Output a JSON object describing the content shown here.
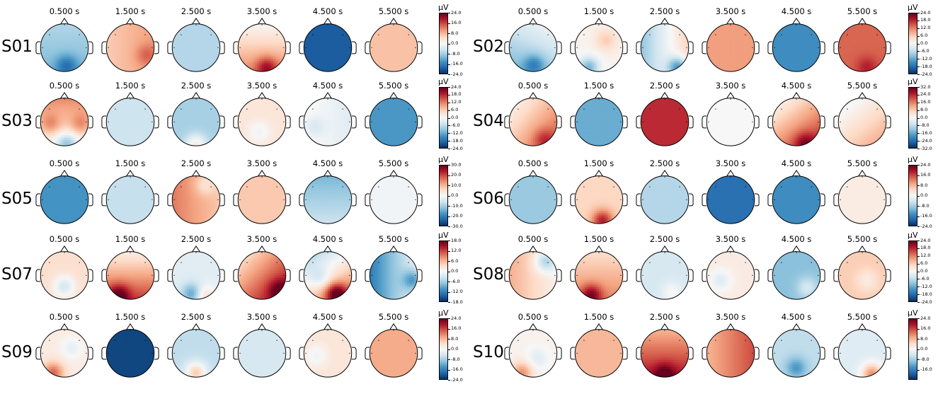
{
  "colors": {
    "colormap": [
      "#053061",
      "#2166ac",
      "#4393c3",
      "#92c5de",
      "#d1e5f0",
      "#f7f7f7",
      "#fddbc7",
      "#f4a582",
      "#d6604d",
      "#b2182b",
      "#67001f"
    ],
    "head_outline": "#000000",
    "contour": "#555555"
  },
  "chart_data": {
    "type": "heatmap",
    "title": "",
    "unit": "µV",
    "times": [
      "0.500 s",
      "1.500 s",
      "2.500 s",
      "3.500 s",
      "4.500 s",
      "5.500 s"
    ],
    "subjects": [
      {
        "label": "S01",
        "vmax": 24,
        "ticks": [
          "24.0",
          "16.0",
          "8.0",
          "0.0",
          "-8.0",
          "-16.0",
          "-24.0"
        ],
        "maps": [
          {
            "mean": -9,
            "gx": 0,
            "gy": -2,
            "hot": [
              [
                0.1,
                0.75,
                -8
              ]
            ]
          },
          {
            "mean": 8,
            "gx": 2,
            "gy": 0,
            "hot": [
              [
                0.65,
                0.3,
                5
              ]
            ]
          },
          {
            "mean": -7,
            "gx": 0,
            "gy": 0,
            "hot": []
          },
          {
            "mean": 6,
            "gx": 0,
            "gy": 6,
            "hot": [
              [
                0.2,
                0.8,
                10
              ]
            ]
          },
          {
            "mean": -20,
            "gx": 0,
            "gy": 0,
            "hot": []
          },
          {
            "mean": 7,
            "gx": 0,
            "gy": 0,
            "hot": []
          }
        ]
      },
      {
        "label": "S02",
        "vmax": 24,
        "ticks": [
          "24.0",
          "18.0",
          "12.0",
          "6.0",
          "0.0",
          "-6.0",
          "-12.0",
          "-18.0",
          "-24.0"
        ],
        "maps": [
          {
            "mean": -6,
            "gx": 2,
            "gy": -4,
            "hot": [
              [
                0.05,
                0.7,
                -8
              ]
            ]
          },
          {
            "mean": 1,
            "gx": 0,
            "gy": 0,
            "hot": [
              [
                -0.4,
                0.8,
                -12
              ],
              [
                0.3,
                -0.3,
                5
              ]
            ]
          },
          {
            "mean": -2,
            "gx": 8,
            "gy": 0,
            "hot": [
              [
                0.55,
                0.8,
                -16
              ]
            ]
          },
          {
            "mean": 10,
            "gx": 0,
            "gy": 0,
            "hot": []
          },
          {
            "mean": -15,
            "gx": 0,
            "gy": 0,
            "hot": []
          },
          {
            "mean": 14,
            "gx": 0,
            "gy": 0,
            "hot": [
              [
                0.2,
                0.8,
                5
              ]
            ]
          }
        ]
      },
      {
        "label": "S03",
        "vmax": 24,
        "ticks": [
          "24.0",
          "18.0",
          "12.0",
          "6.0",
          "0.0",
          "-6.0",
          "-12.0",
          "-18.0",
          "-24.0"
        ],
        "maps": [
          {
            "mean": 6,
            "gx": 0,
            "gy": -6,
            "hot": [
              [
                -0.55,
                0.1,
                6
              ],
              [
                0.65,
                0.1,
                6
              ],
              [
                0.1,
                0.85,
                -10
              ]
            ]
          },
          {
            "mean": -5,
            "gx": 0,
            "gy": 0,
            "hot": []
          },
          {
            "mean": -8,
            "gx": 0,
            "gy": 0,
            "hot": [
              [
                0.0,
                0.95,
                10
              ]
            ]
          },
          {
            "mean": 3,
            "gx": 0,
            "gy": 0,
            "hot": [
              [
                -0.1,
                0.4,
                -4
              ]
            ]
          },
          {
            "mean": -1,
            "gx": -2,
            "gy": 0,
            "hot": [
              [
                -0.55,
                0.2,
                -4
              ]
            ]
          },
          {
            "mean": -14,
            "gx": 0,
            "gy": 0,
            "hot": []
          }
        ]
      },
      {
        "label": "S04",
        "vmax": 32,
        "ticks": [
          "32.0",
          "24.0",
          "16.0",
          "8.0",
          "0.0",
          "-8.0",
          "-16.0",
          "-24.0",
          "-32.0"
        ],
        "maps": [
          {
            "mean": 10,
            "gx": 6,
            "gy": 5,
            "hot": [
              [
                0.45,
                0.7,
                8
              ]
            ]
          },
          {
            "mean": -16,
            "gx": 0,
            "gy": 0,
            "hot": []
          },
          {
            "mean": 24,
            "gx": 0,
            "gy": 0,
            "hot": []
          },
          {
            "mean": 0,
            "gx": 0,
            "gy": 0,
            "hot": []
          },
          {
            "mean": 12,
            "gx": 6,
            "gy": 8,
            "hot": [
              [
                0.35,
                0.85,
                10
              ]
            ]
          },
          {
            "mean": 5,
            "gx": 4,
            "gy": 5,
            "hot": []
          }
        ]
      },
      {
        "label": "S05",
        "vmax": 30,
        "ticks": [
          "30.0",
          "20.0",
          "10.0",
          "0.0",
          "-10.0",
          "-20.0",
          "-30.0"
        ],
        "maps": [
          {
            "mean": -18,
            "gx": 0,
            "gy": 0,
            "hot": []
          },
          {
            "mean": -7,
            "gx": 0,
            "gy": 0,
            "hot": []
          },
          {
            "mean": 12,
            "gx": -4,
            "gy": 0,
            "hot": [
              [
                0.35,
                -0.6,
                -6
              ]
            ]
          },
          {
            "mean": 8,
            "gx": 0,
            "gy": 0,
            "hot": []
          },
          {
            "mean": -10,
            "gx": 0,
            "gy": 4,
            "hot": []
          },
          {
            "mean": -1,
            "gx": 0,
            "gy": 0,
            "hot": []
          }
        ]
      },
      {
        "label": "S06",
        "vmax": 24,
        "ticks": [
          "24.0",
          "16.0",
          "8.0",
          "0.0",
          "-8.0",
          "-16.0",
          "-24.0"
        ],
        "maps": [
          {
            "mean": -9,
            "gx": 0,
            "gy": 0,
            "hot": []
          },
          {
            "mean": 5,
            "gx": 0,
            "gy": 0,
            "hot": [
              [
                0.15,
                0.85,
                14
              ]
            ]
          },
          {
            "mean": -7,
            "gx": 0,
            "gy": 0,
            "hot": []
          },
          {
            "mean": -18,
            "gx": 0,
            "gy": 0,
            "hot": []
          },
          {
            "mean": -15,
            "gx": 0,
            "gy": 0,
            "hot": []
          },
          {
            "mean": 2,
            "gx": 0,
            "gy": 0,
            "hot": []
          }
        ]
      },
      {
        "label": "S07",
        "vmax": 18,
        "ticks": [
          "18.0",
          "12.0",
          "6.0",
          "0.0",
          "-6.0",
          "-12.0",
          "-18.0"
        ],
        "maps": [
          {
            "mean": 3,
            "gx": 0,
            "gy": 0,
            "hot": [
              [
                0.0,
                0.45,
                -6
              ]
            ]
          },
          {
            "mean": 7,
            "gx": 0,
            "gy": 6,
            "hot": [
              [
                -0.45,
                0.8,
                8
              ]
            ]
          },
          {
            "mean": -2,
            "gx": 0,
            "gy": 0,
            "hot": [
              [
                -0.15,
                0.75,
                -8
              ],
              [
                0.35,
                0.85,
                6
              ]
            ]
          },
          {
            "mean": 9,
            "gx": 4,
            "gy": 4,
            "hot": [
              [
                0.7,
                0.6,
                6
              ]
            ]
          },
          {
            "mean": 2,
            "gx": 4,
            "gy": 6,
            "hot": [
              [
                0.35,
                0.75,
                12
              ],
              [
                -0.3,
                0.1,
                -4
              ]
            ]
          },
          {
            "mean": -7,
            "gx": 6,
            "gy": 0,
            "hot": [
              [
                0.8,
                0.2,
                -8
              ]
            ]
          }
        ]
      },
      {
        "label": "S08",
        "vmax": 24,
        "ticks": [
          "24.0",
          "18.0",
          "12.0",
          "6.0",
          "0.0",
          "-6.0",
          "-12.0",
          "-18.0",
          "-24.0"
        ],
        "maps": [
          {
            "mean": 5,
            "gx": -4,
            "gy": 0,
            "hot": [
              [
                0.5,
                -0.55,
                -10
              ]
            ]
          },
          {
            "mean": 8,
            "gx": 0,
            "gy": 4,
            "hot": [
              [
                -0.3,
                0.8,
                12
              ]
            ]
          },
          {
            "mean": -4,
            "gx": 0,
            "gy": 0,
            "hot": [
              [
                0.3,
                0.7,
                4
              ]
            ]
          },
          {
            "mean": 2,
            "gx": 0,
            "gy": 0,
            "hot": [
              [
                -0.4,
                0.2,
                -5
              ]
            ]
          },
          {
            "mean": -10,
            "gx": 0,
            "gy": 0,
            "hot": [
              [
                0.45,
                0.5,
                6
              ]
            ]
          },
          {
            "mean": 6,
            "gx": 0,
            "gy": 0,
            "hot": [
              [
                0.2,
                0.2,
                -4
              ]
            ]
          }
        ]
      },
      {
        "label": "S09",
        "vmax": 24,
        "ticks": [
          "24.0",
          "16.0",
          "8.0",
          "0.0",
          "-8.0",
          "-16.0",
          "-24.0"
        ],
        "maps": [
          {
            "mean": 2,
            "gx": 0,
            "gy": 0,
            "hot": [
              [
                -0.45,
                0.8,
                12
              ],
              [
                0.3,
                -0.2,
                -4
              ]
            ]
          },
          {
            "mean": -22,
            "gx": 0,
            "gy": 0,
            "hot": []
          },
          {
            "mean": -6,
            "gx": 0,
            "gy": 0,
            "hot": [
              [
                0.0,
                0.8,
                12
              ]
            ]
          },
          {
            "mean": -4,
            "gx": 0,
            "gy": 0,
            "hot": []
          },
          {
            "mean": 3,
            "gx": 0,
            "gy": 0,
            "hot": [
              [
                -0.45,
                0.1,
                -4
              ]
            ]
          },
          {
            "mean": 9,
            "gx": 0,
            "gy": 0,
            "hot": []
          }
        ]
      },
      {
        "label": "S10",
        "vmax": 24,
        "ticks": [
          "24.0",
          "16.0",
          "8.0",
          "0.0",
          "-8.0",
          "-16.0"
        ],
        "maps": [
          {
            "mean": 1,
            "gx": 0,
            "gy": 0,
            "hot": [
              [
                -0.45,
                0.8,
                10
              ],
              [
                0.2,
                0.2,
                -4
              ]
            ]
          },
          {
            "mean": 8,
            "gx": 0,
            "gy": 0,
            "hot": []
          },
          {
            "mean": 14,
            "gx": 0,
            "gy": 6,
            "hot": [
              [
                0.0,
                0.85,
                8
              ]
            ]
          },
          {
            "mean": 12,
            "gx": 4,
            "gy": 0,
            "hot": []
          },
          {
            "mean": -6,
            "gx": 0,
            "gy": 0,
            "hot": [
              [
                0.0,
                0.6,
                -8
              ]
            ]
          },
          {
            "mean": -3,
            "gx": 0,
            "gy": 0,
            "hot": [
              [
                0.4,
                0.85,
                14
              ]
            ]
          }
        ]
      }
    ]
  }
}
